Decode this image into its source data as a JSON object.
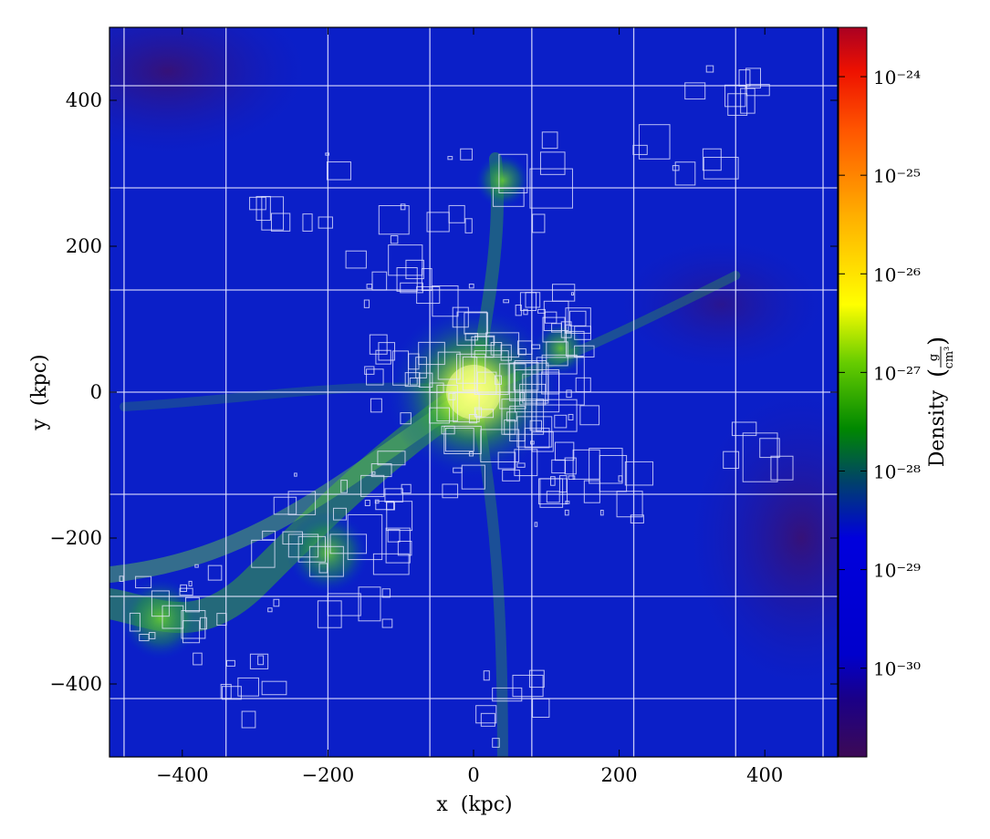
{
  "chart_data": {
    "type": "heatmap",
    "title": "",
    "xlabel": "x  (kpc)",
    "ylabel": "y  (kpc)",
    "xlim": [
      -500,
      500
    ],
    "ylim": [
      -500,
      500
    ],
    "x_ticks": [
      -400,
      -200,
      0,
      200,
      400
    ],
    "y_ticks": [
      -400,
      -200,
      0,
      200,
      400
    ],
    "x_tick_labels": [
      "−400",
      "−200",
      "0",
      "200",
      "400"
    ],
    "y_tick_labels": [
      "−400",
      "−200",
      "0",
      "200",
      "400"
    ],
    "grid": false,
    "colorbar": {
      "label": "Density",
      "unit_numerator": "g",
      "unit_denominator": "cm³",
      "scale": "log",
      "range_exponent": [
        -30.9,
        -23.5
      ],
      "tick_exponents": [
        -24,
        -25,
        -26,
        -27,
        -28,
        -29,
        -30
      ],
      "tick_labels": [
        "10⁻²⁴",
        "10⁻²⁵",
        "10⁻²⁶",
        "10⁻²⁷",
        "10⁻²⁸",
        "10⁻²⁹",
        "10⁻³⁰"
      ],
      "colors": [
        "#3d0a55",
        "#0000cc",
        "#009900",
        "#ffff00",
        "#ff9900",
        "#ff2200",
        "#cc0000"
      ]
    },
    "grid_patch_lines_kpc": {
      "vertical": [
        -480,
        -340,
        -200,
        -60,
        80,
        220,
        360,
        480
      ],
      "horizontal": [
        420,
        280,
        140,
        0,
        -140,
        -280,
        -420
      ]
    },
    "density_features": [
      {
        "x": 0,
        "y": 0,
        "level": "high"
      },
      {
        "x": -200,
        "y": -220,
        "level": "medium"
      },
      {
        "x": -430,
        "y": -310,
        "level": "medium"
      },
      {
        "x": 40,
        "y": 290,
        "level": "low"
      },
      {
        "x": 120,
        "y": 60,
        "level": "low"
      }
    ]
  }
}
